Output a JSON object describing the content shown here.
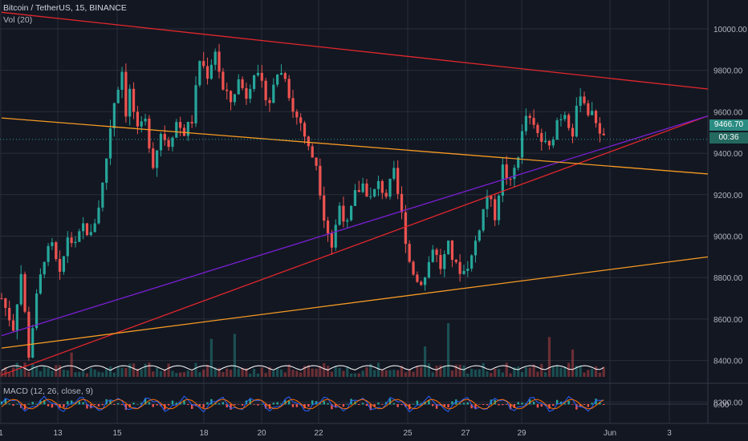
{
  "legend": {
    "symbol": "Bitcoin / TetherUS, 15, BINANCE",
    "volume": "Vol (20)",
    "macd": "MACD (12, 26, close, 9)"
  },
  "price_label": "9466.70",
  "countdown_label": "00:36",
  "colors": {
    "background": "#131722",
    "grid": "#2a2e39",
    "up": "#26a69a",
    "down": "#ef5350",
    "red_line": "#e3272c",
    "purple_line": "#7b1fd3",
    "orange_line": "#f59a23",
    "volume_ma": "#ffffff",
    "macd": "#2962ff",
    "signal": "#ff6d00",
    "price_tag": "#2a8c82"
  },
  "chart_data": {
    "type": "candlestick",
    "x_tick_labels": [
      "1",
      "13",
      "15",
      "18",
      "20",
      "22",
      "25",
      "27",
      "29",
      "Jun",
      "3"
    ],
    "y_tick_labels": [
      "10000.00",
      "9800.00",
      "9600.00",
      "9400.00",
      "9200.00",
      "9000.00",
      "8800.00",
      "8600.00",
      "8400.00",
      "8200.00"
    ],
    "macd_tick_label": "0.00",
    "ylim": [
      8050,
      10100
    ],
    "last_price": 9466.7,
    "price_path": [
      [
        0,
        8700
      ],
      [
        3,
        8560
      ],
      [
        5,
        8820
      ],
      [
        7,
        8430
      ],
      [
        9,
        8700
      ],
      [
        11,
        8900
      ],
      [
        13,
        8950
      ],
      [
        15,
        8800
      ],
      [
        17,
        9000
      ],
      [
        19,
        8950
      ],
      [
        21,
        9050
      ],
      [
        23,
        9000
      ],
      [
        25,
        9150
      ],
      [
        26,
        9250
      ],
      [
        27,
        9380
      ],
      [
        28,
        9530
      ],
      [
        29,
        9650
      ],
      [
        31,
        9800
      ],
      [
        32,
        9600
      ],
      [
        33,
        9700
      ],
      [
        35,
        9500
      ],
      [
        37,
        9550
      ],
      [
        39,
        9350
      ],
      [
        41,
        9500
      ],
      [
        43,
        9450
      ],
      [
        45,
        9550
      ],
      [
        47,
        9500
      ],
      [
        49,
        9560
      ],
      [
        51,
        9850
      ],
      [
        53,
        9780
      ],
      [
        55,
        9900
      ],
      [
        57,
        9700
      ],
      [
        59,
        9650
      ],
      [
        61,
        9750
      ],
      [
        63,
        9680
      ],
      [
        65,
        9800
      ],
      [
        67,
        9720
      ],
      [
        69,
        9650
      ],
      [
        71,
        9790
      ],
      [
        73,
        9780
      ],
      [
        75,
        9600
      ],
      [
        77,
        9550
      ],
      [
        79,
        9420
      ],
      [
        81,
        9350
      ],
      [
        83,
        9100
      ],
      [
        85,
        8950
      ],
      [
        87,
        9150
      ],
      [
        89,
        9050
      ],
      [
        91,
        9200
      ],
      [
        93,
        9250
      ],
      [
        95,
        9180
      ],
      [
        97,
        9250
      ],
      [
        99,
        9200
      ],
      [
        101,
        9300
      ],
      [
        103,
        9100
      ],
      [
        105,
        8880
      ],
      [
        107,
        8780
      ],
      [
        109,
        8800
      ],
      [
        111,
        8950
      ],
      [
        113,
        8850
      ],
      [
        115,
        8950
      ],
      [
        117,
        8850
      ],
      [
        119,
        8830
      ],
      [
        121,
        8900
      ],
      [
        123,
        9050
      ],
      [
        125,
        9200
      ],
      [
        127,
        9100
      ],
      [
        129,
        9330
      ],
      [
        131,
        9250
      ],
      [
        133,
        9400
      ],
      [
        135,
        9580
      ],
      [
        137,
        9520
      ],
      [
        139,
        9460
      ],
      [
        141,
        9420
      ],
      [
        143,
        9560
      ],
      [
        145,
        9600
      ],
      [
        147,
        9500
      ],
      [
        149,
        9700
      ],
      [
        151,
        9600
      ],
      [
        153,
        9560
      ],
      [
        155,
        9466.7
      ]
    ],
    "x_range": [
      0,
      190
    ],
    "trend_lines": [
      {
        "name": "red-descending",
        "color": "red",
        "from": [
          0,
          10080
        ],
        "to": [
          182,
          9710
        ]
      },
      {
        "name": "red-ascending",
        "color": "red",
        "from": [
          0,
          8330
        ],
        "to": [
          182,
          9580
        ]
      },
      {
        "name": "purple-ascending",
        "color": "purple",
        "from": [
          0,
          8520
        ],
        "to": [
          182,
          9580
        ]
      },
      {
        "name": "orange-descending",
        "color": "orange",
        "from": [
          0,
          9570
        ],
        "to": [
          182,
          9300
        ]
      },
      {
        "name": "orange-ascending",
        "color": "orange",
        "from": [
          0,
          8460
        ],
        "to": [
          182,
          8900
        ]
      }
    ]
  }
}
